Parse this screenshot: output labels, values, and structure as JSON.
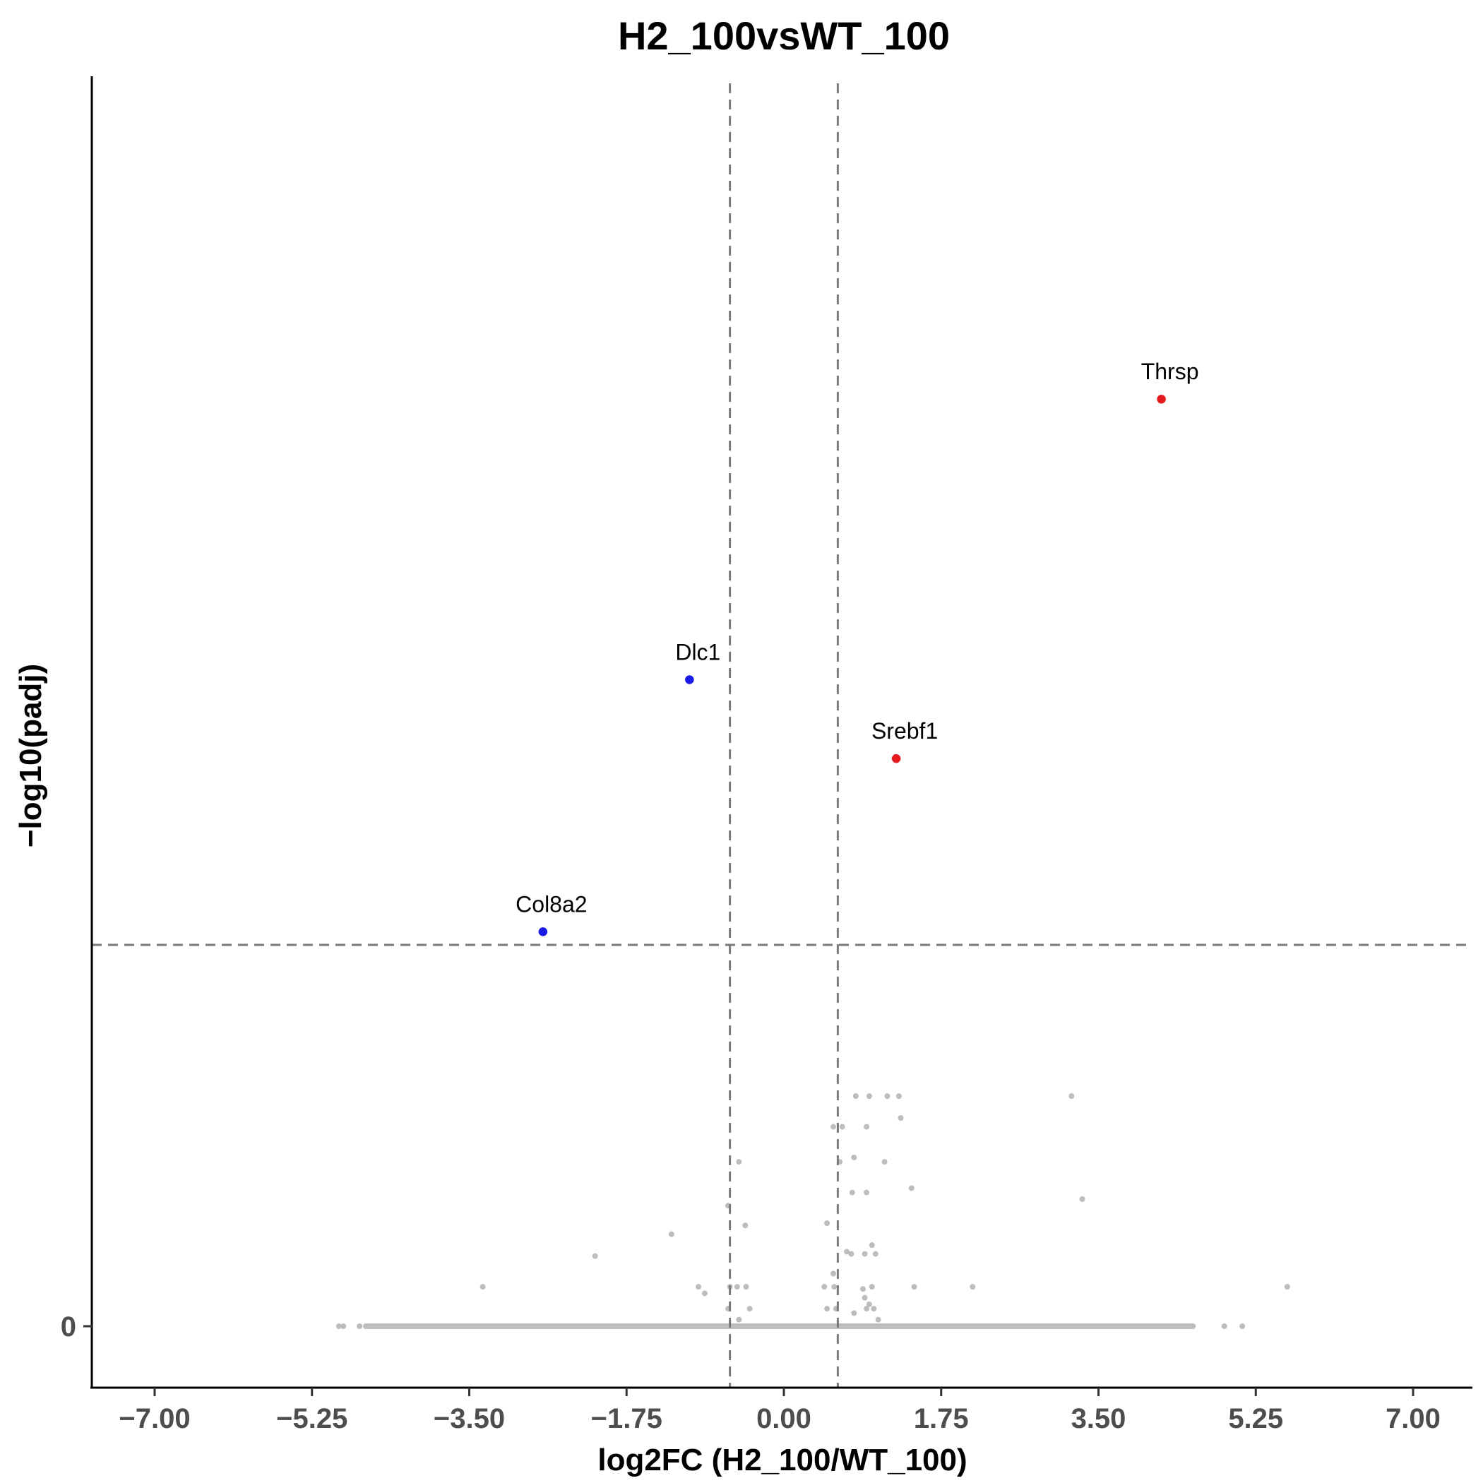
{
  "chart_data": {
    "type": "scatter",
    "title": "H2_100vsWT_100",
    "xlabel": "log2FC (H2_100/WT_100)",
    "ylabel": "−log10(padj)",
    "xlim": [
      -7.0,
      7.0
    ],
    "ylim": [
      0,
      5.6
    ],
    "x_ticks": [
      -7.0,
      -5.25,
      -3.5,
      -1.75,
      0.0,
      1.75,
      3.5,
      5.25,
      7.0
    ],
    "x_tick_labels": [
      "−7.00",
      "−5.25",
      "−3.50",
      "−1.75",
      "0.00",
      "1.75",
      "3.50",
      "5.25",
      "7.00"
    ],
    "y_ticks": [
      0
    ],
    "y_tick_labels": [
      "0"
    ],
    "thresholds": {
      "log2fc": [
        -0.6,
        0.6
      ],
      "neg_log10_padj": 1.74
    },
    "grid": false,
    "legend": "none",
    "colors": {
      "up": "#e41a1c",
      "down": "#1a1ae6",
      "ns": "#bdbdbd",
      "threshold": "#7a7a7a"
    },
    "labeled_points": [
      {
        "gene": "Thrsp",
        "x": 4.2,
        "y": 4.23,
        "group": "up"
      },
      {
        "gene": "Dlc1",
        "x": -1.05,
        "y": 2.95,
        "group": "down"
      },
      {
        "gene": "Srebf1",
        "x": 1.25,
        "y": 2.59,
        "group": "up"
      },
      {
        "gene": "Col8a2",
        "x": -2.68,
        "y": 1.8,
        "group": "down"
      }
    ],
    "ns_points": [
      [
        0.8,
        1.05
      ],
      [
        0.95,
        1.05
      ],
      [
        1.15,
        1.05
      ],
      [
        1.28,
        1.05
      ],
      [
        3.2,
        1.05
      ],
      [
        0.55,
        0.91
      ],
      [
        0.65,
        0.91
      ],
      [
        0.92,
        0.91
      ],
      [
        1.3,
        0.95
      ],
      [
        -0.5,
        0.75
      ],
      [
        0.62,
        0.75
      ],
      [
        0.78,
        0.77
      ],
      [
        1.12,
        0.75
      ],
      [
        0.76,
        0.61
      ],
      [
        0.92,
        0.61
      ],
      [
        1.42,
        0.63
      ],
      [
        3.32,
        0.58
      ],
      [
        -0.62,
        0.55
      ],
      [
        -0.43,
        0.46
      ],
      [
        0.48,
        0.47
      ],
      [
        -1.25,
        0.42
      ],
      [
        -2.1,
        0.32
      ],
      [
        0.7,
        0.34
      ],
      [
        0.75,
        0.33
      ],
      [
        0.9,
        0.33
      ],
      [
        0.98,
        0.37
      ],
      [
        1.02,
        0.33
      ],
      [
        0.55,
        0.24
      ],
      [
        -3.35,
        0.18
      ],
      [
        -0.95,
        0.18
      ],
      [
        -0.88,
        0.15
      ],
      [
        -0.6,
        0.18
      ],
      [
        -0.52,
        0.18
      ],
      [
        -0.42,
        0.18
      ],
      [
        0.45,
        0.18
      ],
      [
        0.56,
        0.18
      ],
      [
        0.88,
        0.17
      ],
      [
        0.98,
        0.18
      ],
      [
        1.45,
        0.18
      ],
      [
        2.1,
        0.18
      ],
      [
        5.6,
        0.18
      ],
      [
        0.9,
        0.13
      ],
      [
        0.95,
        0.1
      ],
      [
        -0.62,
        0.08
      ],
      [
        -0.38,
        0.08
      ],
      [
        0.48,
        0.08
      ],
      [
        0.58,
        0.08
      ],
      [
        0.92,
        0.08
      ],
      [
        1.0,
        0.08
      ],
      [
        -0.5,
        0.03
      ],
      [
        0.78,
        0.06
      ],
      [
        1.05,
        0.03
      ],
      [
        -4.95,
        0.0
      ],
      [
        -4.9,
        0.0
      ],
      [
        -4.72,
        0.0
      ],
      [
        -4.65,
        0.0
      ],
      [
        4.9,
        0.0
      ],
      [
        5.1,
        0.0
      ]
    ],
    "ns_baseline": {
      "x_from": -4.65,
      "x_to": 4.55,
      "y": 0
    }
  }
}
